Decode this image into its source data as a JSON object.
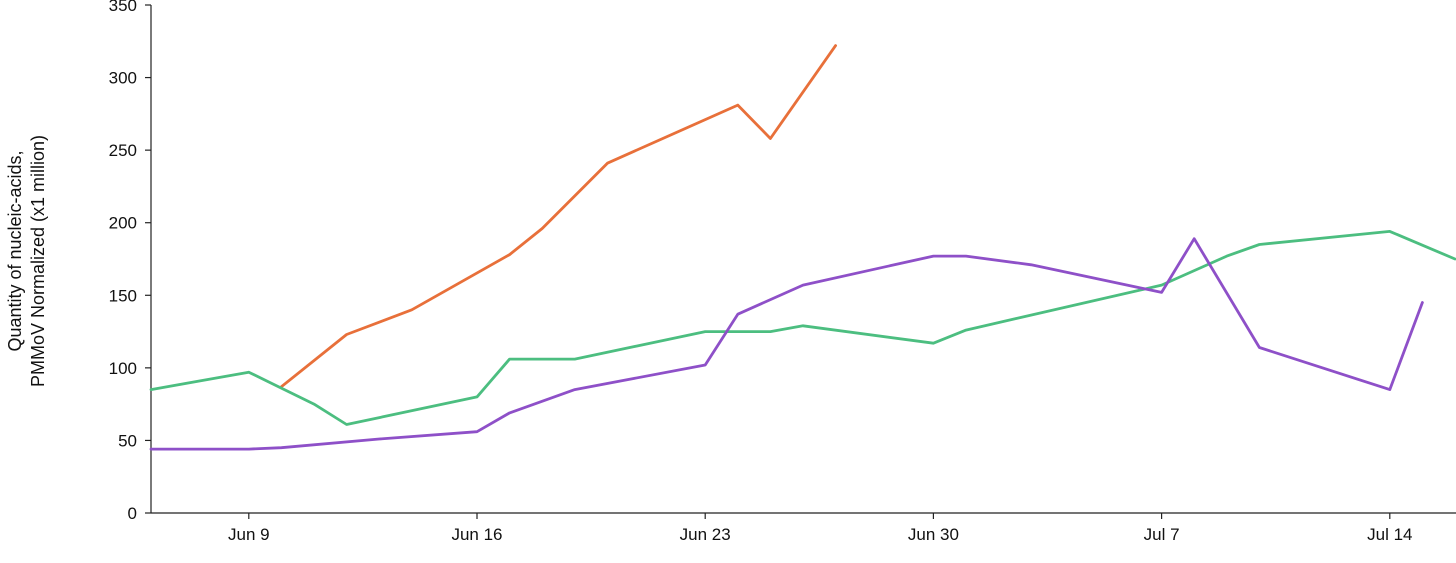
{
  "chart_data": {
    "type": "line",
    "ylabel_lines": [
      "Quantity of nucleic-acids,",
      "PMMoV Normalized (x1 million)"
    ],
    "ylim": [
      0,
      350
    ],
    "y_ticks": [
      0,
      50,
      100,
      150,
      200,
      250,
      300,
      350
    ],
    "y_tick_labels": [
      "0",
      "50",
      "100",
      "150",
      "200",
      "250",
      "300",
      "350"
    ],
    "xlim": [
      "2024-06-06",
      "2024-07-17"
    ],
    "x_ticks": [
      "2024-06-09",
      "2024-06-16",
      "2024-06-23",
      "2024-06-30",
      "2024-07-07",
      "2024-07-14"
    ],
    "x_tick_labels": [
      "Jun 9",
      "Jun 16",
      "Jun 23",
      "Jun 30",
      "Jul 7",
      "Jul 14"
    ],
    "grid": false,
    "series": [
      {
        "color": "#E8703A",
        "x": [
          "2024-06-10",
          "2024-06-12",
          "2024-06-14",
          "2024-06-17",
          "2024-06-18",
          "2024-06-20",
          "2024-06-24",
          "2024-06-25",
          "2024-06-27"
        ],
        "y": [
          87,
          123,
          140,
          178,
          196,
          241,
          281,
          258,
          322
        ]
      },
      {
        "color": "#4CBE80",
        "x": [
          "2024-06-06",
          "2024-06-09",
          "2024-06-11",
          "2024-06-12",
          "2024-06-16",
          "2024-06-17",
          "2024-06-19",
          "2024-06-23",
          "2024-06-25",
          "2024-06-26",
          "2024-06-30",
          "2024-07-01",
          "2024-07-07",
          "2024-07-09",
          "2024-07-10",
          "2024-07-14",
          "2024-07-16"
        ],
        "y": [
          85,
          97,
          75,
          61,
          80,
          106,
          106,
          125,
          125,
          129,
          117,
          126,
          157,
          177,
          185,
          194,
          175
        ]
      },
      {
        "color": "#8E50C8",
        "x": [
          "2024-06-06",
          "2024-06-09",
          "2024-06-10",
          "2024-06-13",
          "2024-06-16",
          "2024-06-17",
          "2024-06-19",
          "2024-06-23",
          "2024-06-24",
          "2024-06-26",
          "2024-06-30",
          "2024-07-01",
          "2024-07-03",
          "2024-07-07",
          "2024-07-08",
          "2024-07-10",
          "2024-07-14",
          "2024-07-15"
        ],
        "y": [
          44,
          44,
          45,
          51,
          56,
          69,
          85,
          102,
          137,
          157,
          177,
          177,
          171,
          152,
          189,
          114,
          85,
          145
        ]
      }
    ]
  }
}
